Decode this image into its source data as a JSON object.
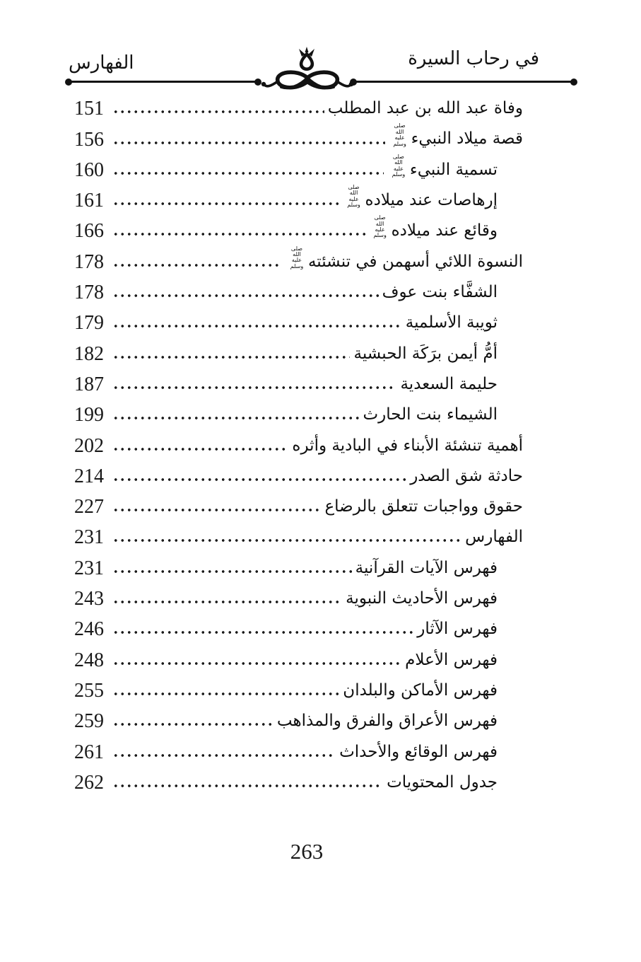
{
  "header": {
    "book_title": "في رحاب السيرة",
    "section_title": "الفهارس"
  },
  "honorific": {
    "symbol": "ﷺ",
    "meaning_lines": [
      "صلى الله",
      "عليه وسلم"
    ]
  },
  "toc": {
    "entries": [
      {
        "title": "وفاة عبد الله بن عبد المطلب",
        "page": "151",
        "indent": 0,
        "honorific": false
      },
      {
        "title": "قصة ميلاد النبيء",
        "page": "156",
        "indent": 0,
        "honorific": true
      },
      {
        "title": "تسمية النبيء",
        "page": "160",
        "indent": 1,
        "honorific": true
      },
      {
        "title": "إرهاصات عند ميلاده",
        "page": "161",
        "indent": 1,
        "honorific": true
      },
      {
        "title": "وقائع عند ميلاده",
        "page": "166",
        "indent": 1,
        "honorific": true
      },
      {
        "title": "النسوة اللائي أسهمن في تنشئته",
        "page": "178",
        "indent": 0,
        "honorific": true
      },
      {
        "title": "الشفَّاء بنت عوف",
        "page": "178",
        "indent": 1,
        "honorific": false
      },
      {
        "title": "ثويبة الأسلمية",
        "page": "179",
        "indent": 1,
        "honorific": false
      },
      {
        "title": "أمُّ أيمن برَكَة الحبشية",
        "page": "182",
        "indent": 1,
        "honorific": false
      },
      {
        "title": "حليمة السعدية",
        "page": "187",
        "indent": 1,
        "honorific": false
      },
      {
        "title": "الشيماء بنت الحارث",
        "page": "199",
        "indent": 1,
        "honorific": false
      },
      {
        "title": "أهمية تنشئة الأبناء في البادية وأثره",
        "page": "202",
        "indent": 0,
        "honorific": false
      },
      {
        "title": "حادثة شق الصدر",
        "page": "214",
        "indent": 0,
        "honorific": false
      },
      {
        "title": "حقوق وواجبات تتعلق بالرضاع",
        "page": "227",
        "indent": 0,
        "honorific": false
      },
      {
        "title": "الفهارس",
        "page": "231",
        "indent": 0,
        "honorific": false
      },
      {
        "title": "فهرس الآيات القرآنية",
        "page": "231",
        "indent": 1,
        "honorific": false
      },
      {
        "title": "فهرس الأحاديث النبوية",
        "page": "243",
        "indent": 1,
        "honorific": false
      },
      {
        "title": "فهرس الآثار",
        "page": "246",
        "indent": 1,
        "honorific": false
      },
      {
        "title": "فهرس الأعلام",
        "page": "248",
        "indent": 1,
        "honorific": false
      },
      {
        "title": "فهرس الأماكن والبلدان",
        "page": "255",
        "indent": 1,
        "honorific": false
      },
      {
        "title": "فهرس الأعراق والفرق والمذاهب",
        "page": "259",
        "indent": 1,
        "honorific": false
      },
      {
        "title": "فهرس الوقائع والأحداث",
        "page": "261",
        "indent": 1,
        "honorific": false
      },
      {
        "title": "جدول المحتويات",
        "page": "262",
        "indent": 1,
        "honorific": false
      }
    ]
  },
  "footer": {
    "page_number": "263"
  },
  "colors": {
    "ink": "#121212",
    "paper": "#ffffff"
  }
}
